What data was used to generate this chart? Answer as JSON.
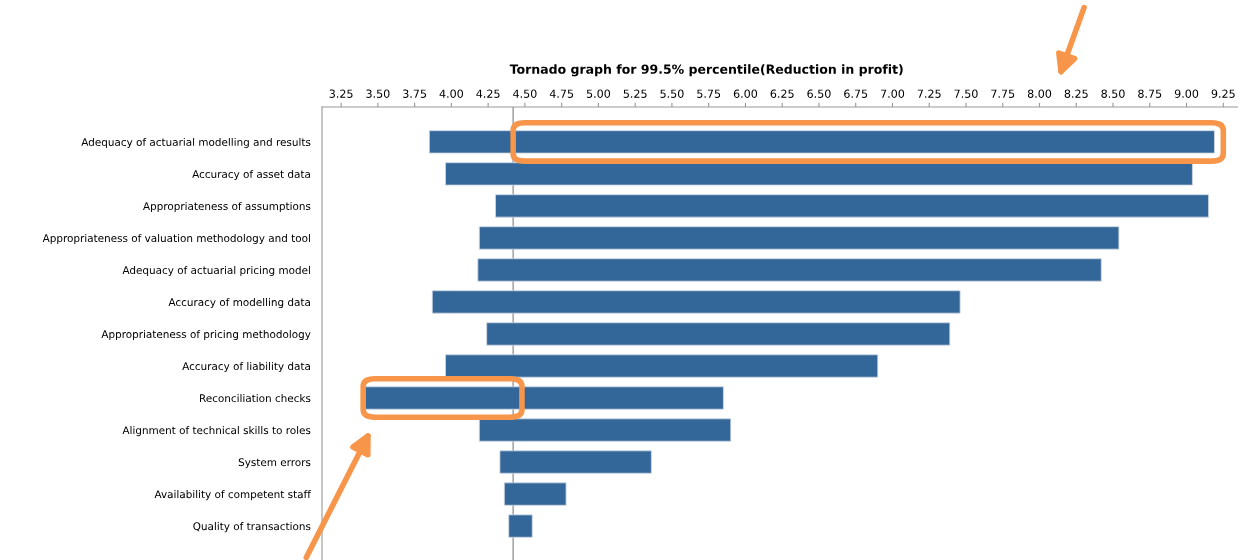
{
  "chart_data": {
    "type": "bar",
    "orientation": "horizontal",
    "title": "Tornado graph for 99.5% percentile(Reduction in profit)",
    "categories": [
      "Adequacy of actuarial modelling and results",
      "Accuracy of asset data",
      "Appropriateness of assumptions",
      "Appropriateness of valuation methodology and tool",
      "Adequacy of actuarial pricing model",
      "Accuracy of modelling data",
      "Appropriateness of pricing methodology",
      "Accuracy of liability data",
      "Reconciliation checks",
      "Alignment of technical skills to roles",
      "System errors",
      "Availability of competent staff",
      "Quality of transactions"
    ],
    "base": [
      3.85,
      3.96,
      4.3,
      4.19,
      4.18,
      3.87,
      4.24,
      3.96,
      3.4,
      4.19,
      4.33,
      4.36,
      4.39
    ],
    "values": [
      5.34,
      5.08,
      4.85,
      4.35,
      4.24,
      3.59,
      3.15,
      2.94,
      2.45,
      1.71,
      1.03,
      0.42,
      0.16
    ],
    "color": "#336699",
    "xlim": [
      3.12,
      9.35
    ],
    "xticks": [
      {
        "value": 3.25,
        "label": "3.25"
      },
      {
        "value": 3.5,
        "label": "3.50"
      },
      {
        "value": 3.75,
        "label": "3.75"
      },
      {
        "value": 4.0,
        "label": "4.00"
      },
      {
        "value": 4.25,
        "label": "4.25"
      },
      {
        "value": 4.5,
        "label": "4.50"
      },
      {
        "value": 4.75,
        "label": "4.75"
      },
      {
        "value": 5.0,
        "label": "5.00"
      },
      {
        "value": 5.25,
        "label": "5.25"
      },
      {
        "value": 5.5,
        "label": "5.50"
      },
      {
        "value": 5.75,
        "label": "5.75"
      },
      {
        "value": 6.0,
        "label": "6.00"
      },
      {
        "value": 6.25,
        "label": "6.25"
      },
      {
        "value": 6.5,
        "label": "6.50"
      },
      {
        "value": 6.75,
        "label": "6.75"
      },
      {
        "value": 7.0,
        "label": "7.00"
      },
      {
        "value": 7.25,
        "label": "7.25"
      },
      {
        "value": 7.5,
        "label": "7.50"
      },
      {
        "value": 7.75,
        "label": "7.75"
      },
      {
        "value": 8.0,
        "label": "8.00"
      },
      {
        "value": 8.25,
        "label": "8.25"
      },
      {
        "value": 8.5,
        "label": "8.50"
      },
      {
        "value": 8.75,
        "label": "8.75"
      },
      {
        "value": 9.0,
        "label": "9.00"
      },
      {
        "value": 9.25,
        "label": "9.25"
      }
    ],
    "ref_lines": [
      {
        "axis": "x",
        "value": 4.42,
        "color": "#999999"
      }
    ],
    "grid": false,
    "legend": false
  }
}
